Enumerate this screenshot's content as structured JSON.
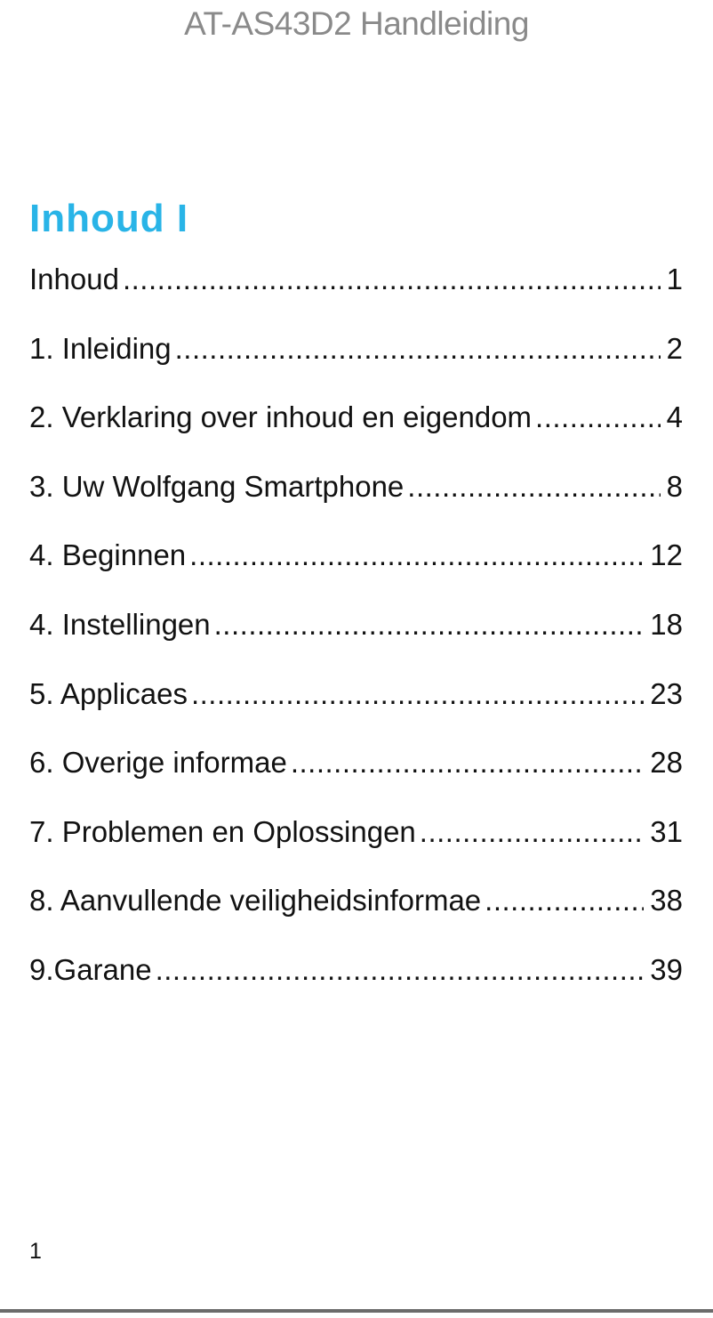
{
  "header": {
    "title": "AT-AS43D2 Handleiding"
  },
  "section": {
    "heading": "Inhoud I"
  },
  "toc": {
    "entries": [
      {
        "label": "Inhoud",
        "page": "1"
      },
      {
        "label": "1. Inleiding",
        "page": "2"
      },
      {
        "label": "2. Verklaring over inhoud en eigendom",
        "page": "4"
      },
      {
        "label": "3. Uw Wolfgang Smartphone",
        "page": "8"
      },
      {
        "label": "4. Beginnen",
        "page": "12"
      },
      {
        "label": "4. Instellingen",
        "page": "18"
      },
      {
        "label": "5. Applicaes",
        "page": "23"
      },
      {
        "label": "6. Overige informae",
        "page": "28"
      },
      {
        "label": "7. Problemen en Oplossingen",
        "page": "31"
      },
      {
        "label": "8. Aanvullende veiligheidsinformae",
        "page": "38"
      },
      {
        "label": "9.Garane",
        "page": "39"
      }
    ]
  },
  "footer": {
    "page_number": "1"
  },
  "colors": {
    "heading_accent": "#29b4e7",
    "title_gray": "#8a8a8a",
    "body_text": "#121212",
    "bottom_rule": "#6b6b6b",
    "background": "#ffffff"
  }
}
